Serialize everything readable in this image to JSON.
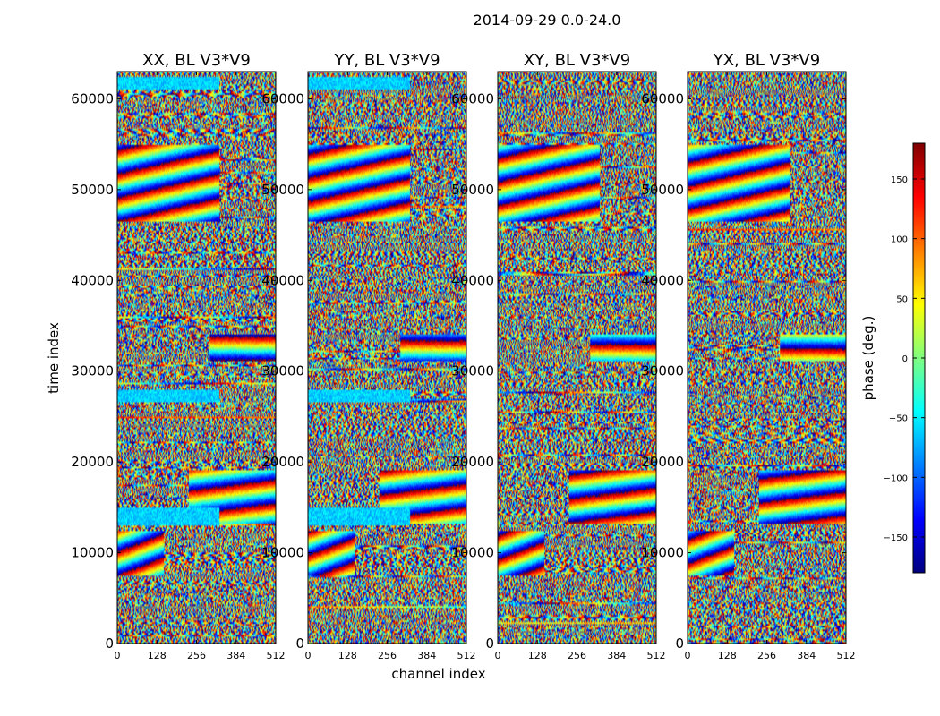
{
  "figure": {
    "suptitle": "2014-09-29 0.0-24.0"
  },
  "chart_data": {
    "type": "heatmap",
    "suptitle": "2014-09-29 0.0-24.0",
    "xlabel": "channel index",
    "ylabel": "time index",
    "xlim": [
      0,
      512
    ],
    "ylim": [
      0,
      63000
    ],
    "xticks": [
      0,
      128,
      256,
      384,
      512
    ],
    "yticks": [
      0,
      10000,
      20000,
      30000,
      40000,
      50000,
      60000
    ],
    "panels": [
      {
        "title": "XX, BL V3*V9",
        "polarization": "XX"
      },
      {
        "title": "YY, BL V3*V9",
        "polarization": "YY"
      },
      {
        "title": "XY, BL V3*V9",
        "polarization": "XY"
      },
      {
        "title": "YX, BL V3*V9",
        "polarization": "YX"
      }
    ],
    "colorbar": {
      "label": "phase (deg.)",
      "range": [
        -180,
        180
      ],
      "ticks": [
        -150,
        -100,
        -50,
        0,
        50,
        100,
        150
      ],
      "colormap": "jet",
      "colors": [
        "#00007f",
        "#0000ff",
        "#007fff",
        "#00ffff",
        "#7fff7f",
        "#ffff00",
        "#ff7f00",
        "#ff0000",
        "#7f0000"
      ]
    },
    "features": {
      "coherent_fringe_bands": [
        {
          "t0": 46500,
          "t1": 55000,
          "ch0": 0,
          "ch1": 330,
          "slope": 0.018,
          "pol": [
            "XX",
            "YY",
            "XY",
            "YX"
          ]
        },
        {
          "t0": 31200,
          "t1": 34000,
          "ch0": 300,
          "ch1": 512,
          "slope": 0.0,
          "pol": [
            "XX",
            "YY",
            "XY",
            "YX"
          ]
        },
        {
          "t0": 13200,
          "t1": 19000,
          "ch0": 230,
          "ch1": 512,
          "slope": 0.01,
          "pol": [
            "XX",
            "YY",
            "XY",
            "YX"
          ]
        },
        {
          "t0": 7500,
          "t1": 12500,
          "ch0": 0,
          "ch1": 150,
          "slope": 0.03,
          "pol": [
            "XX",
            "YY",
            "XY",
            "YX"
          ]
        }
      ],
      "cyan_blocks": [
        {
          "t0": 13000,
          "t1": 15000,
          "ch0": 0,
          "ch1": 330,
          "pol": [
            "XX",
            "YY"
          ]
        },
        {
          "t0": 26500,
          "t1": 28000,
          "ch0": 0,
          "ch1": 330,
          "pol": [
            "XX",
            "YY"
          ]
        },
        {
          "t0": 61000,
          "t1": 62500,
          "ch0": 0,
          "ch1": 330,
          "pol": [
            "XX",
            "YY"
          ]
        }
      ]
    }
  }
}
